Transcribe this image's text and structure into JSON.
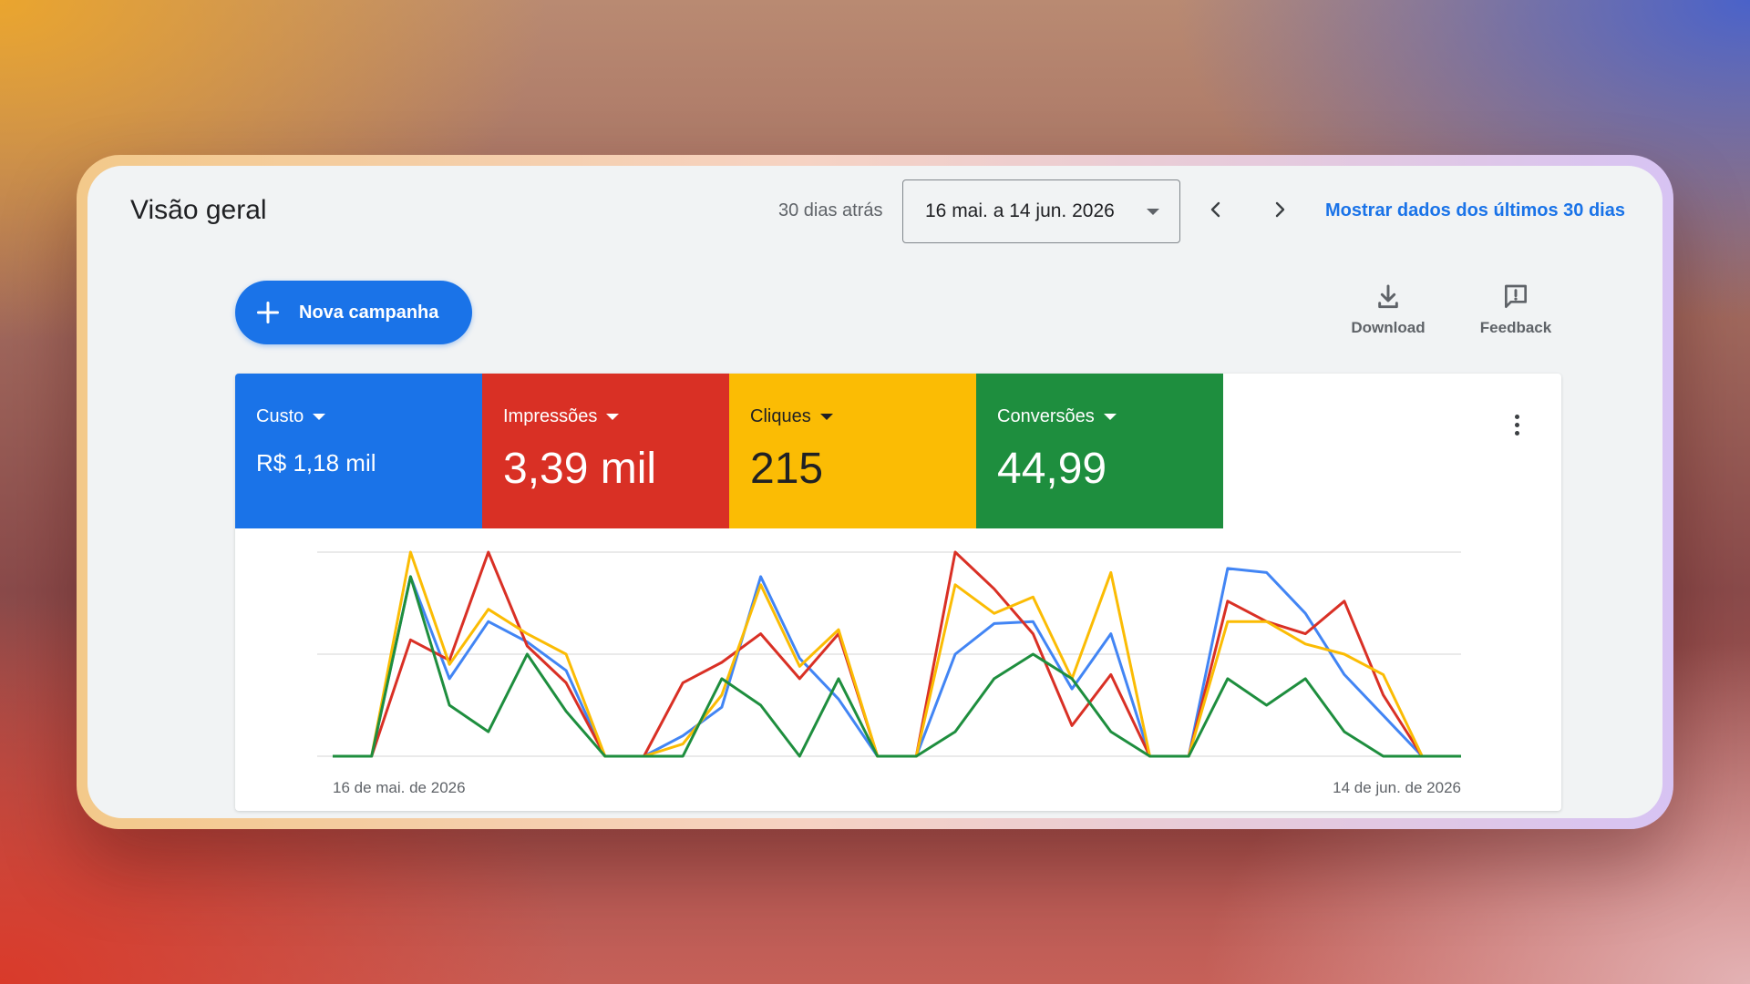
{
  "header": {
    "title": "Visão geral",
    "range_caption": "30 dias atrás",
    "date_range": "16 mai. a 14 jun. 2026",
    "show_last30": "Mostrar dados dos últimos 30 dias"
  },
  "actions": {
    "new_campaign": "Nova campanha",
    "download": "Download",
    "feedback": "Feedback"
  },
  "metrics": [
    {
      "label": "Custo",
      "value": "R$ 1,18 mil",
      "color": "#1a73e8"
    },
    {
      "label": "Impressões",
      "value": "3,39 mil",
      "color": "#d93025"
    },
    {
      "label": "Cliques",
      "value": "215",
      "color": "#fbbc04"
    },
    {
      "label": "Conversões",
      "value": "44,99",
      "color": "#1e8e3e"
    }
  ],
  "chart_data": {
    "type": "line",
    "x_start_label": "16 de mai. de 2026",
    "x_end_label": "14 de jun. de 2026",
    "ylim": [
      0,
      100
    ],
    "grid": true,
    "series": [
      {
        "color": "#4285f4",
        "values": [
          0,
          0,
          88,
          38,
          66,
          56,
          42,
          0,
          0,
          10,
          24,
          88,
          48,
          28,
          0,
          0,
          50,
          65,
          66,
          33,
          60,
          0,
          0,
          92,
          90,
          70,
          40,
          20,
          0,
          0
        ]
      },
      {
        "color": "#d93025",
        "values": [
          0,
          0,
          57,
          47,
          100,
          54,
          36,
          0,
          0,
          36,
          46,
          60,
          38,
          60,
          0,
          0,
          100,
          82,
          60,
          15,
          40,
          0,
          0,
          76,
          66,
          60,
          76,
          30,
          0,
          0
        ]
      },
      {
        "color": "#fbbc04",
        "values": [
          0,
          0,
          100,
          45,
          72,
          60,
          50,
          0,
          0,
          6,
          30,
          84,
          44,
          62,
          0,
          0,
          84,
          70,
          78,
          38,
          90,
          0,
          0,
          66,
          66,
          55,
          50,
          40,
          0,
          0
        ]
      },
      {
        "color": "#1e8e3e",
        "values": [
          0,
          0,
          88,
          25,
          12,
          50,
          22,
          0,
          0,
          0,
          38,
          25,
          0,
          38,
          0,
          0,
          12,
          38,
          50,
          38,
          12,
          0,
          0,
          38,
          25,
          38,
          12,
          0,
          0,
          0
        ]
      }
    ]
  }
}
